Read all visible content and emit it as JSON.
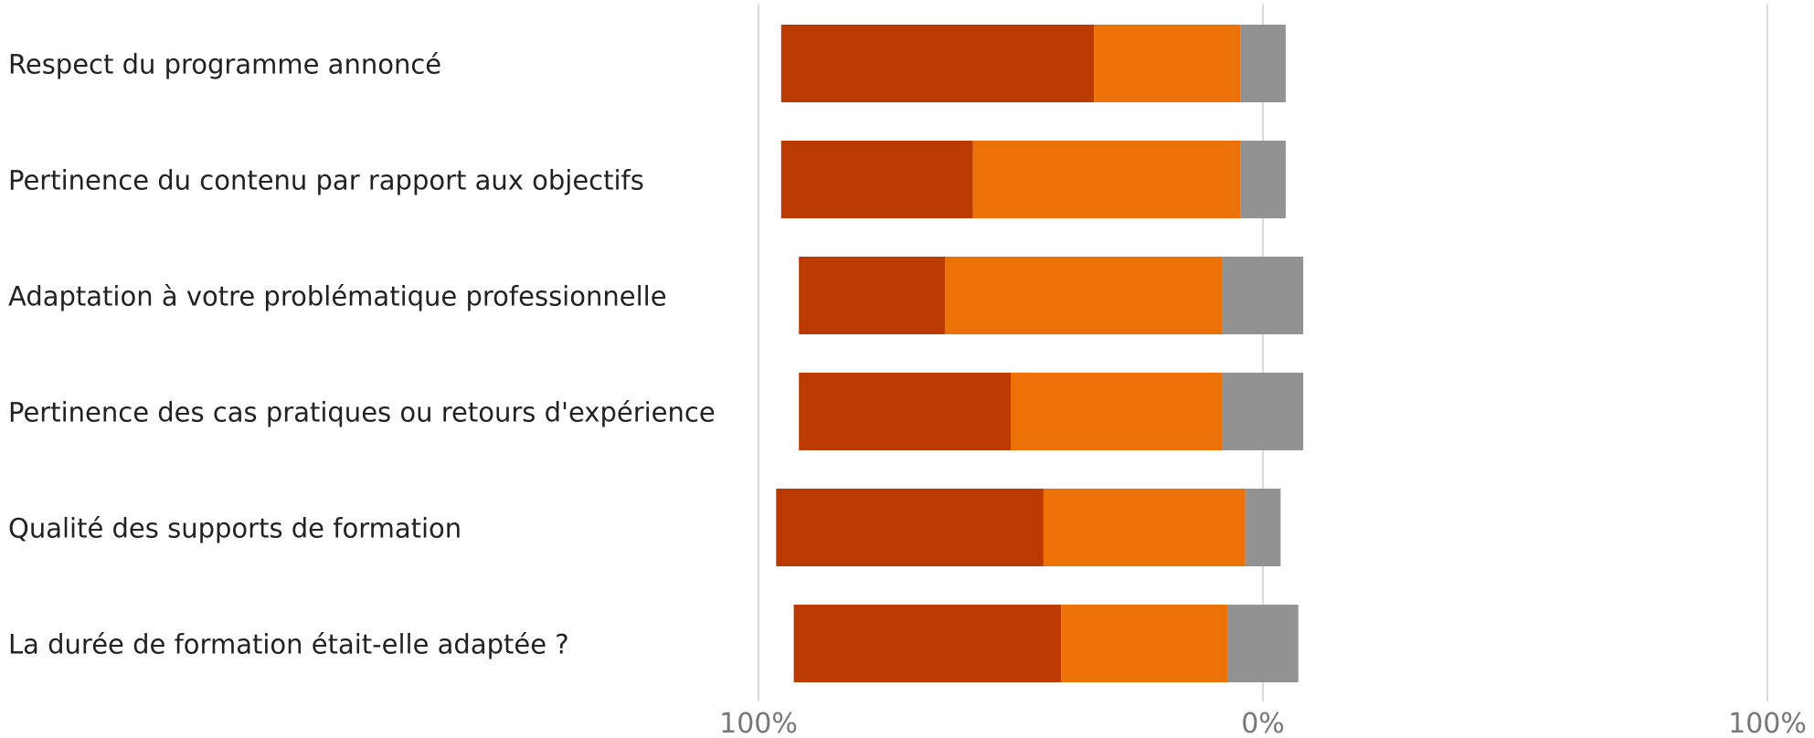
{
  "chart_data": {
    "type": "bar",
    "orientation": "horizontal",
    "stacked": "diverging",
    "categories": [
      "Respect du programme annoncé",
      "Pertinence du contenu par rapport aux objectifs",
      "Adaptation à votre problématique professionnelle",
      "Pertinence des cas pratiques ou retours d'expérience",
      "Qualité des supports de formation",
      "La durée de formation était-elle adaptée ?"
    ],
    "series": [
      {
        "color": "#BB3A02",
        "values": [
          62,
          38,
          29,
          42,
          53,
          53
        ],
        "side": "negative"
      },
      {
        "color": "#EC7106",
        "values": [
          29,
          53,
          55,
          42,
          40,
          33
        ],
        "side": "negative"
      },
      {
        "color": "#929292",
        "values": [
          9,
          9,
          16,
          16,
          7,
          14
        ],
        "side": "straddle"
      }
    ],
    "x_ticks": [
      "100%",
      "0%",
      "100%"
    ],
    "xlim": [
      -100,
      100
    ],
    "grid": true,
    "legend": "none",
    "title": "",
    "xlabel": "",
    "ylabel": ""
  }
}
